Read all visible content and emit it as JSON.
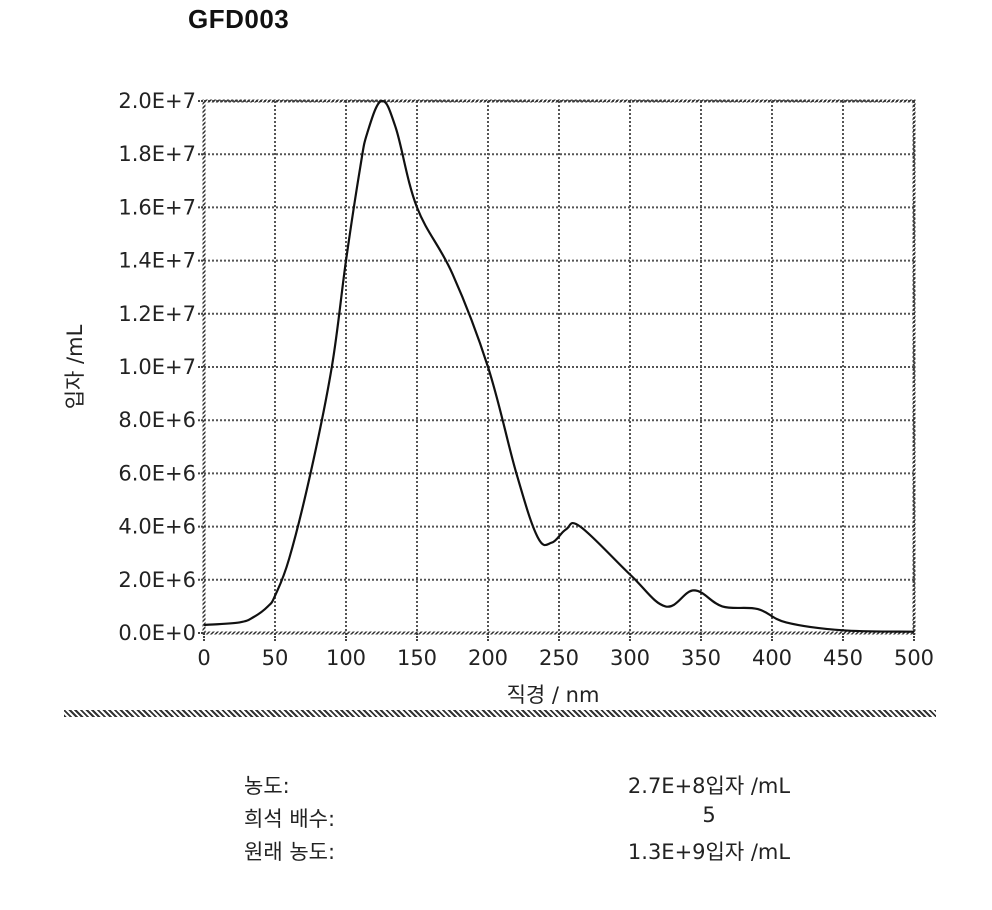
{
  "title": "GFD003",
  "chart_data": {
    "type": "line",
    "title": "GFD003",
    "xlabel": "직경 / nm",
    "ylabel": "입자 /mL",
    "xlim": [
      0,
      500
    ],
    "ylim": [
      0,
      20000000
    ],
    "grid": true,
    "legend": null,
    "x_ticks": [
      "0",
      "50",
      "100",
      "150",
      "200",
      "250",
      "300",
      "350",
      "400",
      "450",
      "500"
    ],
    "y_ticks": [
      "0.0E+0",
      "2.0E+6",
      "4.0E+6",
      "6.0E+6",
      "8.0E+6",
      "1.0E+7",
      "1.2E+7",
      "1.4E+7",
      "1.6E+7",
      "1.8E+7",
      "2.0E+7"
    ],
    "series": [
      {
        "name": "GFD003",
        "color": "#111111",
        "x": [
          0,
          25,
          35,
          45,
          50,
          60,
          75,
          90,
          100,
          110,
          115,
          125,
          135,
          150,
          175,
          200,
          220,
          235,
          245,
          255,
          265,
          300,
          325,
          345,
          365,
          390,
          410,
          450,
          500
        ],
        "y": [
          300000,
          400000,
          600000,
          1000000,
          1400000,
          2800000,
          6000000,
          10000000,
          14000000,
          17500000,
          18800000,
          20000000,
          19000000,
          16000000,
          13500000,
          10000000,
          6000000,
          3600000,
          3400000,
          3900000,
          4000000,
          2200000,
          1000000,
          1600000,
          1000000,
          900000,
          400000,
          100000,
          50000
        ]
      }
    ]
  },
  "stats": [
    {
      "label": "농도:",
      "value": "2.7E+8입자 /mL"
    },
    {
      "label": "희석 배수:",
      "value": "5"
    },
    {
      "label": "원래 농도:",
      "value": "1.3E+9입자 /mL"
    }
  ]
}
